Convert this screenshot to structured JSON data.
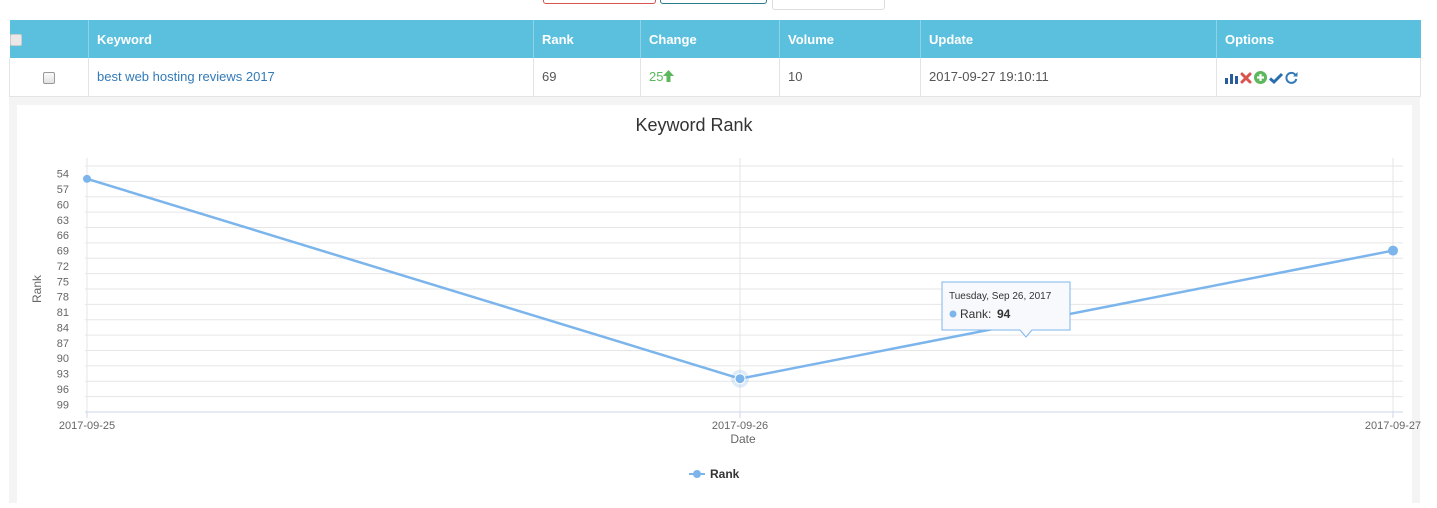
{
  "table": {
    "headers": {
      "keyword": "Keyword",
      "rank": "Rank",
      "change": "Change",
      "volume": "Volume",
      "update": "Update",
      "options": "Options"
    },
    "rows": [
      {
        "keyword": "best web hosting reviews 2017",
        "rank": "69",
        "change": "25",
        "volume": "10",
        "update": "2017-09-27 19:10:11"
      }
    ],
    "option_icons": [
      "bar-chart-icon",
      "delete-icon",
      "add-icon",
      "check-icon",
      "refresh-icon"
    ]
  },
  "colors": {
    "header_bg": "#5bc0de",
    "series": "#7cb5ec",
    "change_up": "#5cb85c",
    "link": "#337ab7",
    "delete": "#d9534f"
  },
  "chart_data": {
    "type": "line",
    "title": "Keyword Rank",
    "xlabel": "Date",
    "ylabel": "Rank",
    "x": [
      "2017-09-25",
      "2017-09-26",
      "2017-09-27"
    ],
    "series": [
      {
        "name": "Rank",
        "values": [
          55,
          94,
          69
        ]
      }
    ],
    "y_ticks": [
      54,
      57,
      60,
      63,
      66,
      69,
      72,
      75,
      78,
      81,
      84,
      87,
      90,
      93,
      96,
      99
    ],
    "ylim": [
      54,
      99
    ],
    "y_reversed": true,
    "grid": true,
    "legend": "bottom-center",
    "tooltip": {
      "date": "Tuesday, Sep 26, 2017",
      "label": "Rank:",
      "value": "94"
    }
  }
}
